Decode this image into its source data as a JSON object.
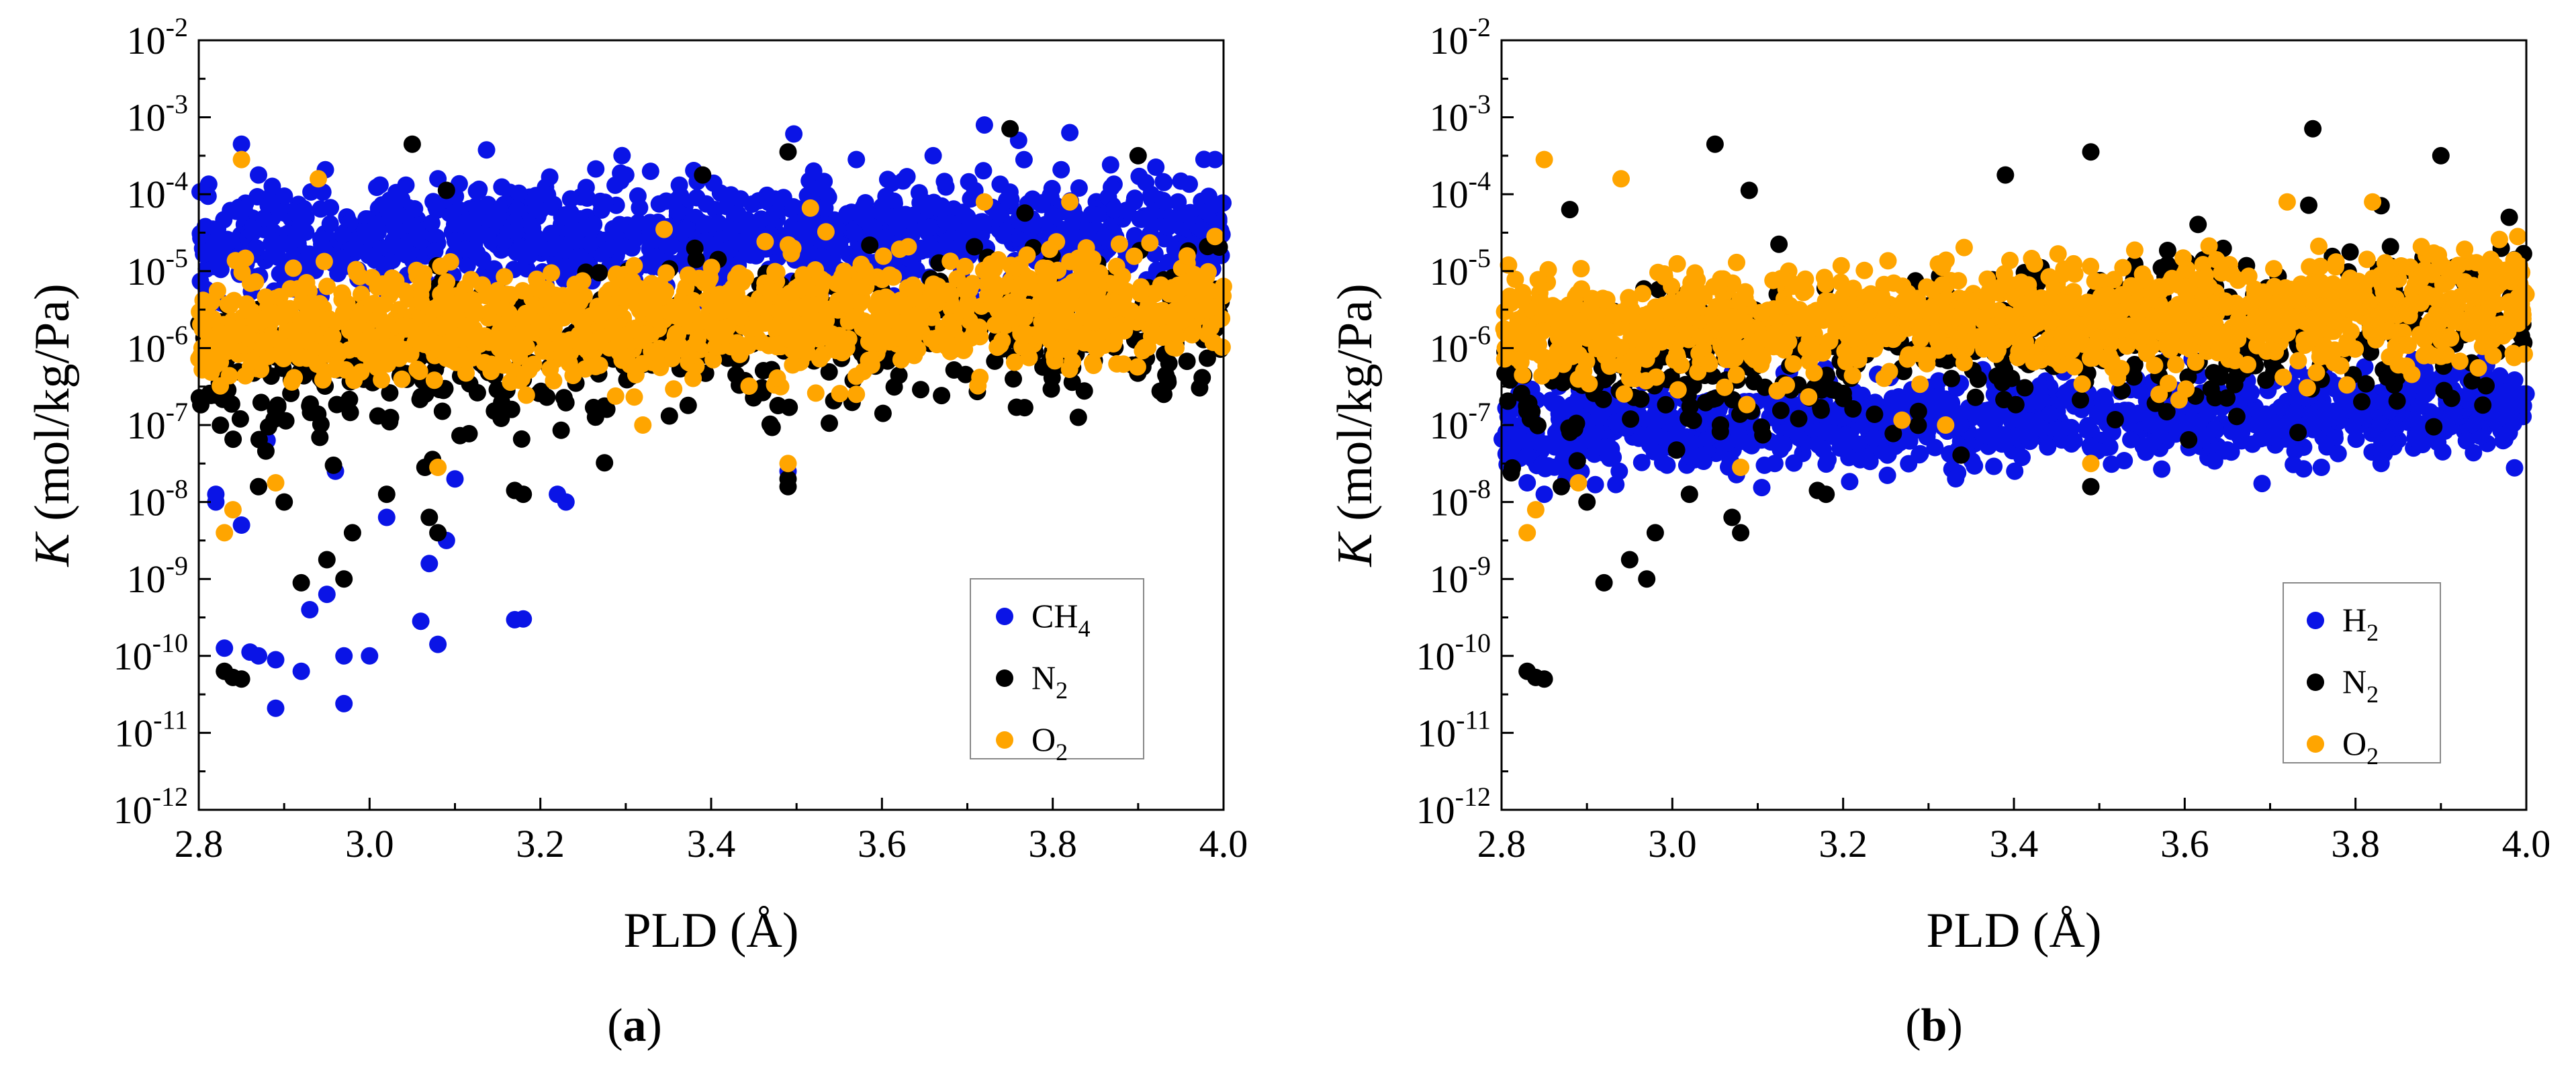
{
  "figure": {
    "panel_labels": [
      {
        "open": "(",
        "letter": "a",
        "close": ")"
      },
      {
        "open": "(",
        "letter": "b",
        "close": ")"
      }
    ]
  },
  "chart_data": [
    {
      "type": "scatter",
      "title": "",
      "xlabel": "PLD (Å)",
      "ylabel": "K (mol/kg/Pa)",
      "ylabel_italic": "K",
      "ylabel_rest": " (mol/kg/Pa)",
      "xscale": "linear",
      "yscale": "log",
      "xlim": [
        2.8,
        4.0
      ],
      "ylim_log10": [
        -12,
        -2
      ],
      "x_ticks": [
        2.8,
        3.0,
        3.2,
        3.4,
        3.6,
        3.8,
        4.0
      ],
      "x_tick_labels": [
        "2.8",
        "3.0",
        "3.2",
        "3.4",
        "3.6",
        "3.8",
        "4.0"
      ],
      "y_tick_exponents": [
        -12,
        -11,
        -10,
        -9,
        -8,
        -7,
        -6,
        -5,
        -4,
        -3,
        -2
      ],
      "y_tick_base": "10",
      "y_tick_labels": [
        "-12",
        "-11",
        "-10",
        "-9",
        "-8",
        "-7",
        "-6",
        "-5",
        "-4",
        "-3",
        "-2"
      ],
      "legend_position": "lower-right",
      "legend": [
        {
          "base": "CH",
          "sub": "4",
          "color": "#0a14e6"
        },
        {
          "base": "N",
          "sub": "2",
          "color": "#000000"
        },
        {
          "base": "O",
          "sub": "2",
          "color": "#ffa500"
        }
      ],
      "series": [
        {
          "name": "CH4",
          "color": "#0a14e6",
          "n_points": 1100,
          "bands": [
            {
              "x_range": [
                2.8,
                4.0
              ],
              "log10_center_start": -4.6,
              "log10_center_end": -4.4,
              "log10_spread": 0.32
            }
          ],
          "outliers": [
            [
              2.85,
              -3.35
            ],
            [
              2.83,
              -9.9
            ],
            [
              2.86,
              -9.95
            ],
            [
              2.87,
              -10.0
            ],
            [
              2.89,
              -10.05
            ],
            [
              2.92,
              -10.2
            ],
            [
              2.89,
              -10.68
            ],
            [
              2.97,
              -10.62
            ],
            [
              2.97,
              -10.0
            ],
            [
              3.0,
              -10.0
            ],
            [
              2.95,
              -9.2
            ],
            [
              2.93,
              -9.4
            ],
            [
              3.06,
              -9.55
            ],
            [
              3.08,
              -9.85
            ],
            [
              3.07,
              -8.8
            ],
            [
              3.18,
              -9.52
            ],
            [
              3.17,
              -9.53
            ],
            [
              3.09,
              -8.5
            ],
            [
              3.02,
              -8.2
            ],
            [
              3.49,
              -7.6
            ],
            [
              2.82,
              -8.0
            ],
            [
              2.82,
              -7.9
            ],
            [
              2.85,
              -8.3
            ],
            [
              2.88,
              -7.2
            ],
            [
              2.96,
              -7.6
            ],
            [
              3.1,
              -7.7
            ],
            [
              3.22,
              -7.9
            ],
            [
              3.23,
              -8.0
            ],
            [
              3.72,
              -3.1
            ],
            [
              3.82,
              -3.2
            ],
            [
              3.76,
              -3.3
            ],
            [
              3.66,
              -3.5
            ],
            [
              3.57,
              -3.55
            ],
            [
              3.99,
              -3.55
            ],
            [
              3.08,
              -3.8
            ],
            [
              3.3,
              -3.75
            ],
            [
              2.87,
              -3.75
            ],
            [
              3.52,
              -3.7
            ]
          ]
        },
        {
          "name": "N2",
          "color": "#000000",
          "n_points": 600,
          "bands": [
            {
              "x_range": [
                2.8,
                4.0
              ],
              "log10_center_start": -6.3,
              "log10_center_end": -5.55,
              "log10_spread": 0.48
            }
          ],
          "outliers": [
            [
              2.84,
              -10.28
            ],
            [
              2.85,
              -10.3
            ],
            [
              2.83,
              -10.2
            ],
            [
              2.92,
              -9.05
            ],
            [
              2.95,
              -8.75
            ],
            [
              2.98,
              -8.4
            ],
            [
              2.9,
              -8.0
            ],
            [
              2.87,
              -7.8
            ],
            [
              3.05,
              -3.35
            ],
            [
              3.49,
              -3.45
            ],
            [
              3.75,
              -3.15
            ],
            [
              3.9,
              -3.5
            ],
            [
              3.39,
              -3.75
            ],
            [
              3.09,
              -3.95
            ],
            [
              3.49,
              -7.8
            ],
            [
              3.49,
              -7.7
            ],
            [
              3.17,
              -7.85
            ],
            [
              3.18,
              -7.9
            ],
            [
              3.08,
              -8.4
            ],
            [
              3.07,
              -8.2
            ],
            [
              2.97,
              -9.0
            ],
            [
              3.02,
              -7.9
            ],
            [
              3.83,
              -6.9
            ],
            [
              3.93,
              -6.6
            ]
          ]
        },
        {
          "name": "O2",
          "color": "#ffa500",
          "n_points": 1300,
          "bands": [
            {
              "x_range": [
                2.8,
                4.0
              ],
              "log10_center_start": -5.8,
              "log10_center_end": -5.45,
              "log10_spread": 0.34
            }
          ],
          "outliers": [
            [
              2.85,
              -3.55
            ],
            [
              2.94,
              -3.8
            ],
            [
              2.83,
              -8.4
            ],
            [
              2.84,
              -8.1
            ],
            [
              2.89,
              -7.75
            ],
            [
              3.08,
              -7.55
            ],
            [
              3.49,
              -7.5
            ],
            [
              3.32,
              -7.0
            ],
            [
              3.57,
              -6.6
            ],
            [
              3.82,
              -4.1
            ],
            [
              3.72,
              -4.1
            ],
            [
              3.99,
              -4.55
            ]
          ]
        }
      ]
    },
    {
      "type": "scatter",
      "title": "",
      "xlabel": "PLD (Å)",
      "ylabel": "K (mol/kg/Pa)",
      "ylabel_italic": "K",
      "ylabel_rest": " (mol/kg/Pa)",
      "xscale": "linear",
      "yscale": "log",
      "xlim": [
        2.8,
        4.0
      ],
      "ylim_log10": [
        -12,
        -2
      ],
      "x_ticks": [
        2.8,
        3.0,
        3.2,
        3.4,
        3.6,
        3.8,
        4.0
      ],
      "x_tick_labels": [
        "2.8",
        "3.0",
        "3.2",
        "3.4",
        "3.6",
        "3.8",
        "4.0"
      ],
      "y_tick_exponents": [
        -12,
        -11,
        -10,
        -9,
        -8,
        -7,
        -6,
        -5,
        -4,
        -3,
        -2
      ],
      "y_tick_base": "10",
      "y_tick_labels": [
        "-12",
        "-11",
        "-10",
        "-9",
        "-8",
        "-7",
        "-6",
        "-5",
        "-4",
        "-3",
        "-2"
      ],
      "legend_position": "lower-right",
      "legend": [
        {
          "base": "H",
          "sub": "2",
          "color": "#0a14e6"
        },
        {
          "base": "N",
          "sub": "2",
          "color": "#000000"
        },
        {
          "base": "O",
          "sub": "2",
          "color": "#ffa500"
        }
      ],
      "series": [
        {
          "name": "H2",
          "color": "#0a14e6",
          "n_points": 1100,
          "bands": [
            {
              "x_range": [
                2.8,
                4.0
              ],
              "log10_center_start": -7.1,
              "log10_center_end": -6.75,
              "log10_spread": 0.28
            }
          ],
          "outliers": [
            [
              2.83,
              -7.75
            ],
            [
              2.85,
              -7.9
            ],
            [
              2.88,
              -7.6
            ],
            [
              3.12,
              -7.5
            ],
            [
              3.22,
              -7.45
            ],
            [
              3.76,
              -7.55
            ],
            [
              3.83,
              -7.5
            ],
            [
              3.98,
              -7.1
            ]
          ]
        },
        {
          "name": "N2",
          "color": "#000000",
          "n_points": 600,
          "bands": [
            {
              "x_range": [
                2.8,
                4.0
              ],
              "log10_center_start": -6.3,
              "log10_center_end": -5.55,
              "log10_spread": 0.48
            }
          ],
          "outliers": [
            [
              2.84,
              -10.28
            ],
            [
              2.85,
              -10.3
            ],
            [
              2.83,
              -10.2
            ],
            [
              2.92,
              -9.05
            ],
            [
              2.95,
              -8.75
            ],
            [
              2.98,
              -8.4
            ],
            [
              2.9,
              -8.0
            ],
            [
              2.87,
              -7.8
            ],
            [
              3.05,
              -3.35
            ],
            [
              3.49,
              -3.45
            ],
            [
              3.75,
              -3.15
            ],
            [
              3.9,
              -3.5
            ],
            [
              3.39,
              -3.75
            ],
            [
              3.09,
              -3.95
            ],
            [
              3.49,
              -7.8
            ],
            [
              3.17,
              -7.85
            ],
            [
              3.18,
              -7.9
            ],
            [
              3.08,
              -8.4
            ],
            [
              3.07,
              -8.2
            ],
            [
              2.97,
              -9.0
            ],
            [
              3.02,
              -7.9
            ],
            [
              3.83,
              -4.15
            ],
            [
              3.98,
              -4.3
            ],
            [
              2.88,
              -4.2
            ]
          ]
        },
        {
          "name": "O2",
          "color": "#ffa500",
          "n_points": 1300,
          "bands": [
            {
              "x_range": [
                2.8,
                4.0
              ],
              "log10_center_start": -5.8,
              "log10_center_end": -5.45,
              "log10_spread": 0.34
            }
          ],
          "outliers": [
            [
              2.85,
              -3.55
            ],
            [
              2.94,
              -3.8
            ],
            [
              2.83,
              -8.4
            ],
            [
              2.84,
              -8.1
            ],
            [
              2.89,
              -7.75
            ],
            [
              3.08,
              -7.55
            ],
            [
              3.49,
              -7.5
            ],
            [
              3.32,
              -7.0
            ],
            [
              3.57,
              -6.6
            ],
            [
              3.82,
              -4.1
            ],
            [
              3.72,
              -4.1
            ],
            [
              3.99,
              -4.55
            ]
          ]
        }
      ]
    }
  ]
}
